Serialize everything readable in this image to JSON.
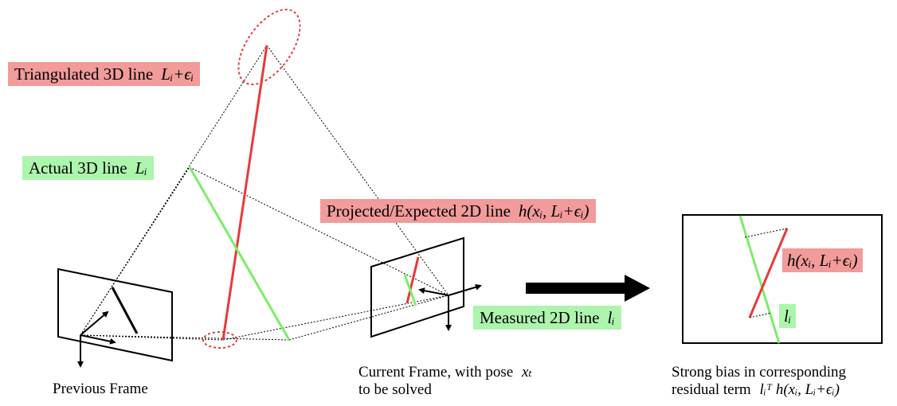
{
  "labels": {
    "triangulated": {
      "text": "Triangulated 3D line",
      "math": "Lᵢ+ϵᵢ"
    },
    "actual": {
      "text": "Actual 3D line",
      "math": "Lᵢ"
    },
    "projected": {
      "text": "Projected/Expected 2D line",
      "math": "h(xᵢ, Lᵢ+ϵᵢ)"
    },
    "measured": {
      "text": "Measured 2D line",
      "math": "lᵢ"
    },
    "inset_projected": {
      "math": "h(xᵢ, Lᵢ+ϵᵢ)"
    },
    "inset_measured": {
      "math": "lᵢ"
    }
  },
  "captions": {
    "previous_frame": "Previous Frame",
    "current_frame_line1": "Current Frame, with pose",
    "current_frame_math": "xₜ",
    "current_frame_line2": "to be solved",
    "bias_line1": "Strong bias in corresponding",
    "bias_line2": "residual term",
    "bias_math": "lᵢᵀ h(xᵢ, Lᵢ+ϵᵢ)"
  },
  "colors": {
    "red_line": "#e8393a",
    "green_line": "#7ded6a",
    "red_label_bg": "#f29b9b",
    "green_label_bg": "#adf5ad"
  }
}
